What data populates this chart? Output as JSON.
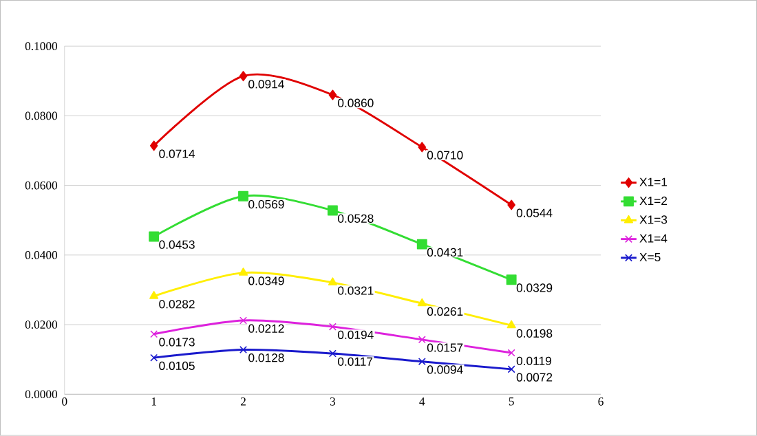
{
  "chart_data": {
    "type": "line",
    "xlim": [
      0,
      6
    ],
    "xticks": [
      0,
      1,
      2,
      3,
      4,
      5,
      6
    ],
    "ylim": [
      0,
      0.1
    ],
    "yticks": [
      {
        "value": 0,
        "label": "0.0000"
      },
      {
        "value": 0.02,
        "label": "0.0200"
      },
      {
        "value": 0.04,
        "label": "0.0400"
      },
      {
        "value": 0.06,
        "label": "0.0600"
      },
      {
        "value": 0.08,
        "label": "0.0800"
      },
      {
        "value": 0.1,
        "label": "0.1000"
      }
    ],
    "grid": "y",
    "legend": "right",
    "line_style": "solid",
    "series": [
      {
        "name": "X1=1",
        "color": "#e00000",
        "marker": "diamond",
        "x": [
          1,
          2,
          3,
          4,
          5
        ],
        "values": [
          0.0714,
          0.0914,
          0.086,
          0.071,
          0.0544
        ],
        "value_labels": [
          "0.0714",
          "0.0914",
          "0.0860",
          "0.0710",
          "0.0544"
        ]
      },
      {
        "name": "X1=2",
        "color": "#33dd33",
        "marker": "square",
        "x": [
          1,
          2,
          3,
          4,
          5
        ],
        "values": [
          0.0453,
          0.0569,
          0.0528,
          0.0431,
          0.0329
        ],
        "value_labels": [
          "0.0453",
          "0.0569",
          "0.0528",
          "0.0431",
          "0.0329"
        ]
      },
      {
        "name": "X1=3",
        "color": "#ffee00",
        "marker": "triangle",
        "x": [
          1,
          2,
          3,
          4,
          5
        ],
        "values": [
          0.0282,
          0.0349,
          0.0321,
          0.0261,
          0.0198
        ],
        "value_labels": [
          "0.0282",
          "0.0349",
          "0.0321",
          "0.0261",
          "0.0198"
        ]
      },
      {
        "name": "X1=4",
        "color": "#dd22dd",
        "marker": "cross",
        "x": [
          1,
          2,
          3,
          4,
          5
        ],
        "values": [
          0.0173,
          0.0212,
          0.0194,
          0.0157,
          0.0119
        ],
        "value_labels": [
          "0.0173",
          "0.0212",
          "0.0194",
          "0.0157",
          "0.0119"
        ]
      },
      {
        "name": "X=5",
        "color": "#1a1acc",
        "marker": "cross",
        "x": [
          1,
          2,
          3,
          4,
          5
        ],
        "values": [
          0.0105,
          0.0128,
          0.0117,
          0.0094,
          0.0072
        ],
        "value_labels": [
          "0.0105",
          "0.0128",
          "0.0117",
          "0.0094",
          "0.0072"
        ]
      }
    ]
  }
}
